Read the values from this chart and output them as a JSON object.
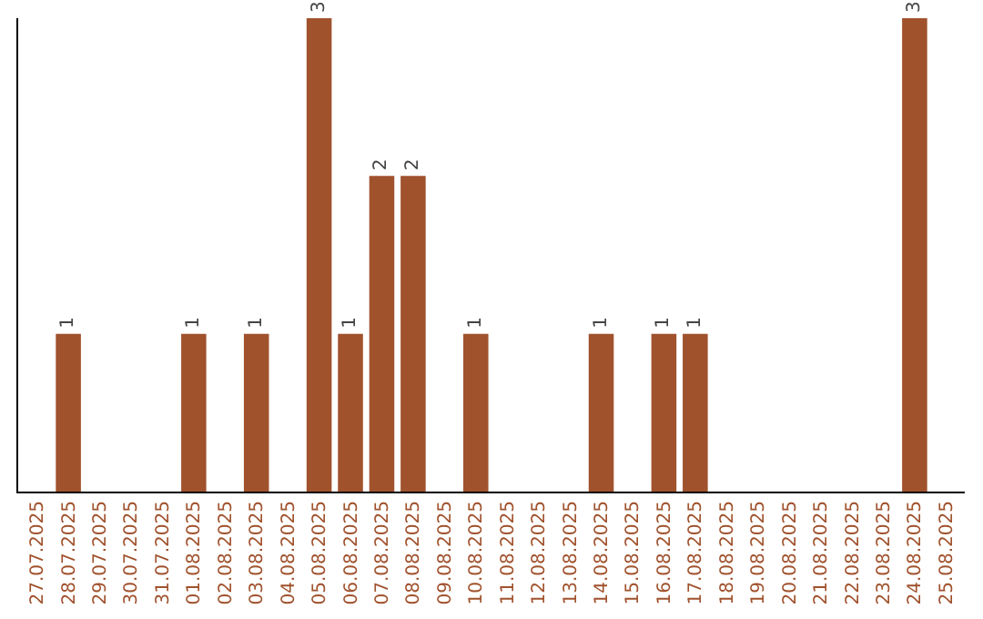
{
  "chart_data": {
    "type": "bar",
    "categories": [
      "27.07.2025",
      "28.07.2025",
      "29.07.2025",
      "30.07.2025",
      "31.07.2025",
      "01.08.2025",
      "02.08.2025",
      "03.08.2025",
      "04.08.2025",
      "05.08.2025",
      "06.08.2025",
      "07.08.2025",
      "08.08.2025",
      "09.08.2025",
      "10.08.2025",
      "11.08.2025",
      "12.08.2025",
      "13.08.2025",
      "14.08.2025",
      "15.08.2025",
      "16.08.2025",
      "17.08.2025",
      "18.08.2025",
      "19.08.2025",
      "20.08.2025",
      "21.08.2025",
      "22.08.2025",
      "23.08.2025",
      "24.08.2025",
      "25.08.2025"
    ],
    "values": [
      0,
      1,
      0,
      0,
      0,
      1,
      0,
      1,
      0,
      3,
      1,
      2,
      2,
      0,
      1,
      0,
      0,
      0,
      1,
      0,
      1,
      1,
      0,
      0,
      0,
      0,
      0,
      0,
      3,
      0
    ],
    "value_labels": [
      null,
      "1",
      null,
      null,
      null,
      "1",
      null,
      "1",
      null,
      "3",
      "1",
      "2",
      "2",
      null,
      "1",
      null,
      null,
      null,
      "1",
      null,
      "1",
      "1",
      null,
      null,
      null,
      null,
      null,
      null,
      "3",
      null
    ],
    "color": "#a0522d",
    "ylim": [
      0,
      3
    ],
    "tick_labels": "x",
    "grid": false,
    "legend": false
  }
}
